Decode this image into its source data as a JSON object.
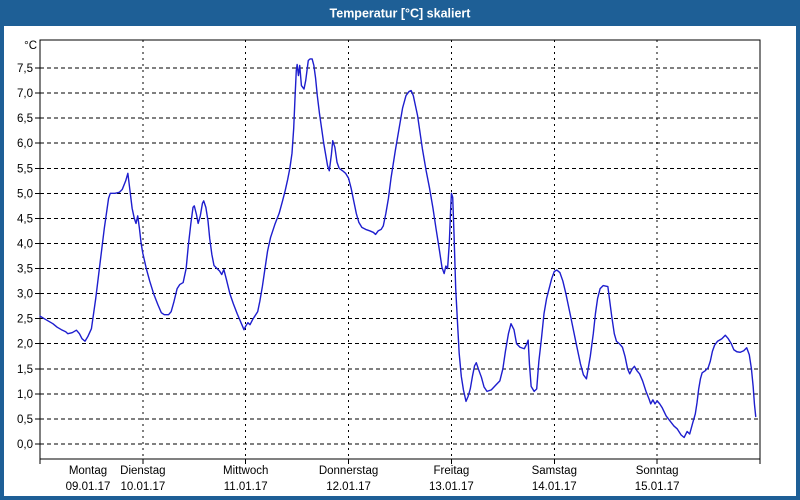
{
  "window": {
    "title": "Temperatur [°C] skaliert"
  },
  "colors": {
    "frame": "#1E5F96",
    "titlebar": "#1E5F96",
    "plot_background": "#FFFFFF",
    "grid": "#000000",
    "series_line": "#1E1ECE",
    "title_text": "#FFFFFF"
  },
  "chart_data": {
    "type": "line",
    "title": "Temperatur [°C] skaliert",
    "ylabel": "°C",
    "xlabel": "",
    "ylim": [
      0,
      7.5
    ],
    "y_step": 0.5,
    "grid": "dashed",
    "legend": "none",
    "x_hours_range": [
      0,
      168
    ],
    "y_ticks": [
      {
        "value": 0.0,
        "label": "0,0"
      },
      {
        "value": 0.5,
        "label": "0,5"
      },
      {
        "value": 1.0,
        "label": "1,0"
      },
      {
        "value": 1.5,
        "label": "1,5"
      },
      {
        "value": 2.0,
        "label": "2,0"
      },
      {
        "value": 2.5,
        "label": "2,5"
      },
      {
        "value": 3.0,
        "label": "3,0"
      },
      {
        "value": 3.5,
        "label": "3,5"
      },
      {
        "value": 4.0,
        "label": "4,0"
      },
      {
        "value": 4.5,
        "label": "4,5"
      },
      {
        "value": 5.0,
        "label": "5,0"
      },
      {
        "value": 5.5,
        "label": "5,5"
      },
      {
        "value": 6.0,
        "label": "6,0"
      },
      {
        "value": 6.5,
        "label": "6,5"
      },
      {
        "value": 7.0,
        "label": "7,0"
      },
      {
        "value": 7.5,
        "label": "7,5"
      }
    ],
    "days": [
      {
        "name": "Montag",
        "date": "09.01.17"
      },
      {
        "name": "Dienstag",
        "date": "10.01.17"
      },
      {
        "name": "Mittwoch",
        "date": "11.01.17"
      },
      {
        "name": "Donnerstag",
        "date": "12.01.17"
      },
      {
        "name": "Freitag",
        "date": "13.01.17"
      },
      {
        "name": "Samstag",
        "date": "14.01.17"
      },
      {
        "name": "Sonntag",
        "date": "15.01.17"
      }
    ],
    "series": [
      {
        "name": "Temperatur",
        "unit": "°C",
        "color": "#1E1ECE",
        "points": [
          [
            0,
            2.55
          ],
          [
            1,
            2.5
          ],
          [
            2,
            2.45
          ],
          [
            3,
            2.4
          ],
          [
            4,
            2.33
          ],
          [
            5,
            2.28
          ],
          [
            6,
            2.24
          ],
          [
            6.5,
            2.2
          ],
          [
            7.5,
            2.22
          ],
          [
            8.5,
            2.27
          ],
          [
            9.2,
            2.2
          ],
          [
            9.8,
            2.1
          ],
          [
            10.5,
            2.05
          ],
          [
            11.2,
            2.15
          ],
          [
            12,
            2.3
          ],
          [
            13,
            2.9
          ],
          [
            14,
            3.6
          ],
          [
            15,
            4.3
          ],
          [
            16,
            4.9
          ],
          [
            16.4,
            5.0
          ],
          [
            17.5,
            5.0
          ],
          [
            18.5,
            5.02
          ],
          [
            19.2,
            5.08
          ],
          [
            20,
            5.25
          ],
          [
            20.5,
            5.4
          ],
          [
            21,
            5.05
          ],
          [
            21.5,
            4.7
          ],
          [
            22,
            4.5
          ],
          [
            22.4,
            4.4
          ],
          [
            22.8,
            4.55
          ],
          [
            23.2,
            4.3
          ],
          [
            23.6,
            4.0
          ],
          [
            24,
            3.8
          ],
          [
            24.8,
            3.5
          ],
          [
            25.6,
            3.25
          ],
          [
            26.5,
            3.0
          ],
          [
            27.5,
            2.78
          ],
          [
            28.3,
            2.62
          ],
          [
            29,
            2.58
          ],
          [
            30,
            2.58
          ],
          [
            30.6,
            2.64
          ],
          [
            31.2,
            2.82
          ],
          [
            32,
            3.1
          ],
          [
            32.6,
            3.18
          ],
          [
            33.4,
            3.22
          ],
          [
            34.1,
            3.5
          ],
          [
            34.6,
            3.95
          ],
          [
            35.2,
            4.4
          ],
          [
            35.7,
            4.72
          ],
          [
            36,
            4.75
          ],
          [
            36.5,
            4.58
          ],
          [
            36.9,
            4.4
          ],
          [
            37.4,
            4.55
          ],
          [
            37.9,
            4.8
          ],
          [
            38.2,
            4.85
          ],
          [
            38.7,
            4.72
          ],
          [
            39.2,
            4.45
          ],
          [
            39.6,
            4.1
          ],
          [
            40.1,
            3.78
          ],
          [
            40.6,
            3.56
          ],
          [
            41.3,
            3.5
          ],
          [
            41.9,
            3.45
          ],
          [
            42.4,
            3.38
          ],
          [
            42.9,
            3.48
          ],
          [
            43.5,
            3.28
          ],
          [
            44.3,
            3.0
          ],
          [
            45.1,
            2.8
          ],
          [
            46,
            2.6
          ],
          [
            47,
            2.4
          ],
          [
            47.6,
            2.28
          ],
          [
            48,
            2.35
          ],
          [
            48.5,
            2.42
          ],
          [
            49,
            2.38
          ],
          [
            49.6,
            2.48
          ],
          [
            50.2,
            2.56
          ],
          [
            50.8,
            2.64
          ],
          [
            51.3,
            2.85
          ],
          [
            51.9,
            3.15
          ],
          [
            52.5,
            3.5
          ],
          [
            53.1,
            3.85
          ],
          [
            53.8,
            4.12
          ],
          [
            54.8,
            4.38
          ],
          [
            55.8,
            4.6
          ],
          [
            56.6,
            4.85
          ],
          [
            57.2,
            5.05
          ],
          [
            57.8,
            5.28
          ],
          [
            58.3,
            5.5
          ],
          [
            58.8,
            5.8
          ],
          [
            59.2,
            6.3
          ],
          [
            59.5,
            6.9
          ],
          [
            59.8,
            7.45
          ],
          [
            60,
            7.57
          ],
          [
            60.3,
            7.35
          ],
          [
            60.6,
            7.55
          ],
          [
            61,
            7.15
          ],
          [
            61.6,
            7.08
          ],
          [
            62,
            7.25
          ],
          [
            62.3,
            7.45
          ],
          [
            62.6,
            7.65
          ],
          [
            63,
            7.68
          ],
          [
            63.5,
            7.68
          ],
          [
            63.9,
            7.55
          ],
          [
            64.3,
            7.3
          ],
          [
            64.7,
            6.95
          ],
          [
            65.2,
            6.6
          ],
          [
            65.7,
            6.3
          ],
          [
            66.2,
            6.0
          ],
          [
            66.7,
            5.75
          ],
          [
            67.1,
            5.55
          ],
          [
            67.5,
            5.45
          ],
          [
            68,
            5.78
          ],
          [
            68.3,
            6.05
          ],
          [
            68.8,
            5.92
          ],
          [
            69.3,
            5.62
          ],
          [
            69.8,
            5.5
          ],
          [
            70.6,
            5.45
          ],
          [
            71.3,
            5.4
          ],
          [
            72,
            5.3
          ],
          [
            72.6,
            5.1
          ],
          [
            73.2,
            4.85
          ],
          [
            73.8,
            4.6
          ],
          [
            74.4,
            4.42
          ],
          [
            75.1,
            4.32
          ],
          [
            76,
            4.28
          ],
          [
            77,
            4.25
          ],
          [
            77.8,
            4.22
          ],
          [
            78.3,
            4.18
          ],
          [
            78.9,
            4.25
          ],
          [
            79.6,
            4.28
          ],
          [
            80.1,
            4.35
          ],
          [
            80.7,
            4.6
          ],
          [
            81.3,
            4.9
          ],
          [
            81.9,
            5.3
          ],
          [
            82.9,
            5.85
          ],
          [
            83.9,
            6.35
          ],
          [
            84.6,
            6.7
          ],
          [
            85.4,
            6.95
          ],
          [
            86.1,
            7.03
          ],
          [
            86.6,
            7.05
          ],
          [
            87.1,
            6.95
          ],
          [
            88.1,
            6.55
          ],
          [
            89.2,
            5.9
          ],
          [
            90.1,
            5.45
          ],
          [
            90.9,
            5.1
          ],
          [
            91.7,
            4.7
          ],
          [
            92.4,
            4.3
          ],
          [
            93.1,
            3.92
          ],
          [
            93.8,
            3.52
          ],
          [
            94.3,
            3.4
          ],
          [
            94.7,
            3.55
          ],
          [
            95.1,
            3.5
          ],
          [
            95.5,
            4.0
          ],
          [
            95.8,
            4.65
          ],
          [
            96,
            5.0
          ],
          [
            96.3,
            4.92
          ],
          [
            96.6,
            4.2
          ],
          [
            97,
            3.1
          ],
          [
            97.4,
            2.45
          ],
          [
            97.8,
            1.82
          ],
          [
            98.3,
            1.35
          ],
          [
            98.8,
            1.08
          ],
          [
            99.4,
            0.85
          ],
          [
            99.9,
            0.95
          ],
          [
            100.4,
            1.1
          ],
          [
            100.9,
            1.35
          ],
          [
            101.4,
            1.56
          ],
          [
            101.8,
            1.62
          ],
          [
            102.4,
            1.47
          ],
          [
            103,
            1.33
          ],
          [
            103.6,
            1.14
          ],
          [
            104.3,
            1.05
          ],
          [
            105.3,
            1.08
          ],
          [
            106.4,
            1.18
          ],
          [
            107.3,
            1.26
          ],
          [
            108,
            1.5
          ],
          [
            108.6,
            1.85
          ],
          [
            109.3,
            2.2
          ],
          [
            109.9,
            2.4
          ],
          [
            110.6,
            2.28
          ],
          [
            111.2,
            2.0
          ],
          [
            112,
            1.93
          ],
          [
            113,
            1.9
          ],
          [
            113.6,
            2.0
          ],
          [
            113.9,
            2.07
          ],
          [
            114.2,
            1.6
          ],
          [
            114.6,
            1.15
          ],
          [
            115.3,
            1.05
          ],
          [
            115.9,
            1.1
          ],
          [
            116.4,
            1.65
          ],
          [
            117,
            2.1
          ],
          [
            117.6,
            2.6
          ],
          [
            118.2,
            2.9
          ],
          [
            118.8,
            3.1
          ],
          [
            119.4,
            3.3
          ],
          [
            120,
            3.44
          ],
          [
            120.6,
            3.47
          ],
          [
            121.3,
            3.42
          ],
          [
            122,
            3.25
          ],
          [
            122.7,
            3.0
          ],
          [
            123.8,
            2.55
          ],
          [
            125,
            2.05
          ],
          [
            126.1,
            1.6
          ],
          [
            126.8,
            1.38
          ],
          [
            127.5,
            1.3
          ],
          [
            128.4,
            1.75
          ],
          [
            129.1,
            2.2
          ],
          [
            129.6,
            2.6
          ],
          [
            130.1,
            2.9
          ],
          [
            130.7,
            3.1
          ],
          [
            131.4,
            3.16
          ],
          [
            132.5,
            3.14
          ],
          [
            133.4,
            2.55
          ],
          [
            134,
            2.2
          ],
          [
            134.5,
            2.05
          ],
          [
            135.2,
            2.0
          ],
          [
            135.9,
            1.93
          ],
          [
            136.5,
            1.75
          ],
          [
            137.1,
            1.5
          ],
          [
            137.6,
            1.4
          ],
          [
            138.2,
            1.5
          ],
          [
            138.7,
            1.55
          ],
          [
            139.3,
            1.46
          ],
          [
            139.9,
            1.4
          ],
          [
            140.6,
            1.26
          ],
          [
            141.4,
            1.05
          ],
          [
            142.1,
            0.9
          ],
          [
            142.5,
            0.8
          ],
          [
            143,
            0.88
          ],
          [
            143.5,
            0.8
          ],
          [
            144,
            0.86
          ],
          [
            144.6,
            0.8
          ],
          [
            145.2,
            0.72
          ],
          [
            146.1,
            0.56
          ],
          [
            147,
            0.46
          ],
          [
            147.9,
            0.36
          ],
          [
            148.7,
            0.3
          ],
          [
            149.6,
            0.18
          ],
          [
            150.3,
            0.13
          ],
          [
            151,
            0.25
          ],
          [
            151.6,
            0.2
          ],
          [
            152.3,
            0.42
          ],
          [
            152.9,
            0.6
          ],
          [
            153.3,
            0.82
          ],
          [
            153.7,
            1.1
          ],
          [
            154.1,
            1.3
          ],
          [
            154.5,
            1.42
          ],
          [
            155.2,
            1.46
          ],
          [
            155.9,
            1.52
          ],
          [
            156.4,
            1.65
          ],
          [
            156.9,
            1.85
          ],
          [
            157.4,
            1.97
          ],
          [
            158.1,
            2.05
          ],
          [
            159.1,
            2.1
          ],
          [
            159.9,
            2.17
          ],
          [
            160.6,
            2.1
          ],
          [
            161.3,
            2.0
          ],
          [
            161.9,
            1.88
          ],
          [
            162.6,
            1.84
          ],
          [
            163.4,
            1.83
          ],
          [
            164.2,
            1.86
          ],
          [
            164.9,
            1.92
          ],
          [
            165.5,
            1.78
          ],
          [
            166,
            1.5
          ],
          [
            166.4,
            1.15
          ],
          [
            166.7,
            0.8
          ],
          [
            167,
            0.55
          ]
        ]
      }
    ]
  }
}
